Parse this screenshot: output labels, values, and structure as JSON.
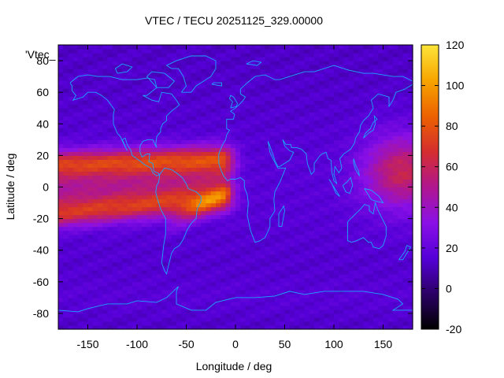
{
  "chart_data": {
    "type": "heatmap",
    "title": "VTEC / TECU 20251125_329.00000",
    "xlabel": "Longitude / deg",
    "ylabel": "Latitude / deg",
    "legend_label": "'Vtec_",
    "xlim": [
      -180,
      180
    ],
    "ylim": [
      -90,
      90
    ],
    "xticks": [
      -150,
      -100,
      -50,
      0,
      50,
      100,
      150
    ],
    "yticks": [
      -80,
      -60,
      -40,
      -20,
      0,
      20,
      40,
      60,
      80
    ],
    "colorbar": {
      "range": [
        -20,
        120
      ],
      "ticks": [
        -20,
        0,
        20,
        40,
        60,
        80,
        100,
        120
      ],
      "palette": [
        "#000000",
        "#2c0066",
        "#5500d8",
        "#8a10e6",
        "#b0178f",
        "#d52e2e",
        "#ec6200",
        "#f7a500",
        "#fde53a"
      ]
    },
    "grid_resolution": {
      "lon_step": 5,
      "lat_step": 2.5
    },
    "field_description": "Background ~12 TECU over most of globe; equatorial ionization crests ~55-80 TECU from lon -180 to -20 (lat +5..+20 and -10..-25); pacific high ~50-65 TECU at lon 120-180 near lat 0..+25"
  },
  "coastlines": {
    "color": "#1aa7ff"
  }
}
